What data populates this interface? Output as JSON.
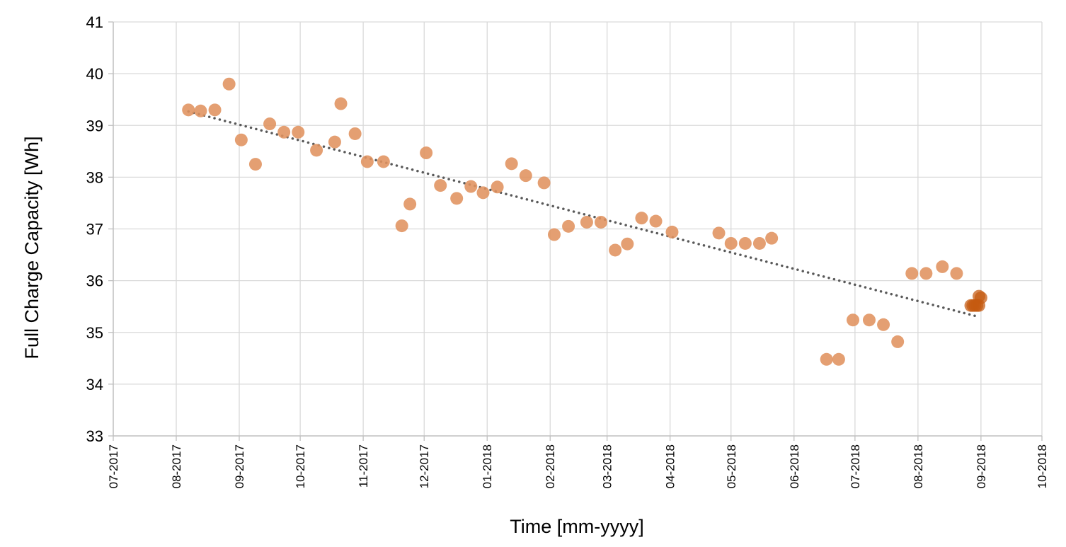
{
  "chart_data": {
    "type": "scatter",
    "title": "",
    "xlabel": "Time [mm-yyyy]",
    "ylabel": "Full Charge Capacity [Wh]",
    "xlim": [
      "2017-07-01",
      "2018-10-01"
    ],
    "ylim": [
      33,
      41
    ],
    "x_ticks": [
      "07-2017",
      "08-2017",
      "09-2017",
      "10-2017",
      "11-2017",
      "12-2017",
      "01-2018",
      "02-2018",
      "03-2018",
      "04-2018",
      "05-2018",
      "06-2018",
      "07-2018",
      "08-2018",
      "09-2018",
      "10-2018"
    ],
    "y_ticks": [
      33,
      34,
      35,
      36,
      37,
      38,
      39,
      40,
      41
    ],
    "grid": true,
    "legend": "none",
    "colors": {
      "points": "#e0925e",
      "points_highlight": "#c55a11",
      "trendline": "#595959",
      "grid": "#d9d9d9"
    },
    "series": [
      {
        "points": [
          [
            "2017-08-07",
            39.3
          ],
          [
            "2017-08-13",
            39.28
          ],
          [
            "2017-08-20",
            39.3
          ],
          [
            "2017-08-27",
            39.8
          ],
          [
            "2017-09-02",
            38.72
          ],
          [
            "2017-09-09",
            38.25
          ],
          [
            "2017-09-16",
            39.03
          ],
          [
            "2017-09-23",
            38.87
          ],
          [
            "2017-09-30",
            38.87
          ],
          [
            "2017-10-09",
            38.52
          ],
          [
            "2017-10-18",
            38.68
          ],
          [
            "2017-10-21",
            39.42
          ],
          [
            "2017-10-28",
            38.84
          ],
          [
            "2017-11-03",
            38.3
          ],
          [
            "2017-11-11",
            38.3
          ],
          [
            "2017-11-20",
            37.06
          ],
          [
            "2017-11-24",
            37.48
          ],
          [
            "2017-12-02",
            38.47
          ],
          [
            "2017-12-09",
            37.84
          ],
          [
            "2017-12-17",
            37.59
          ],
          [
            "2017-12-24",
            37.82
          ],
          [
            "2017-12-30",
            37.7
          ],
          [
            "2018-01-06",
            37.81
          ],
          [
            "2018-01-13",
            38.26
          ],
          [
            "2018-01-20",
            38.03
          ],
          [
            "2018-01-29",
            37.89
          ],
          [
            "2018-02-03",
            36.89
          ],
          [
            "2018-02-10",
            37.05
          ],
          [
            "2018-02-19",
            37.13
          ],
          [
            "2018-02-26",
            37.13
          ],
          [
            "2018-03-05",
            36.59
          ],
          [
            "2018-03-11",
            36.71
          ],
          [
            "2018-03-18",
            37.21
          ],
          [
            "2018-03-25",
            37.15
          ],
          [
            "2018-04-02",
            36.94
          ],
          [
            "2018-04-25",
            36.92
          ],
          [
            "2018-05-01",
            36.72
          ],
          [
            "2018-05-08",
            36.72
          ],
          [
            "2018-05-15",
            36.72
          ],
          [
            "2018-05-21",
            36.82
          ],
          [
            "2018-06-17",
            34.48
          ],
          [
            "2018-06-23",
            34.48
          ],
          [
            "2018-06-30",
            35.24
          ],
          [
            "2018-07-08",
            35.24
          ],
          [
            "2018-07-15",
            35.15
          ],
          [
            "2018-07-22",
            34.82
          ],
          [
            "2018-07-29",
            36.14
          ],
          [
            "2018-08-05",
            36.14
          ],
          [
            "2018-08-13",
            36.27
          ],
          [
            "2018-08-20",
            36.14
          ]
        ]
      },
      {
        "points": [
          [
            "2018-08-27",
            35.52
          ],
          [
            "2018-08-28",
            35.52
          ],
          [
            "2018-08-29",
            35.52
          ],
          [
            "2018-08-30",
            35.52
          ],
          [
            "2018-08-31",
            35.7
          ],
          [
            "2018-09-01",
            35.67
          ],
          [
            "2018-08-31",
            35.52
          ]
        ]
      }
    ],
    "trendline": {
      "style": "dotted",
      "start": [
        "2017-08-07",
        39.27
      ],
      "end": [
        "2018-08-31",
        35.3
      ]
    }
  }
}
